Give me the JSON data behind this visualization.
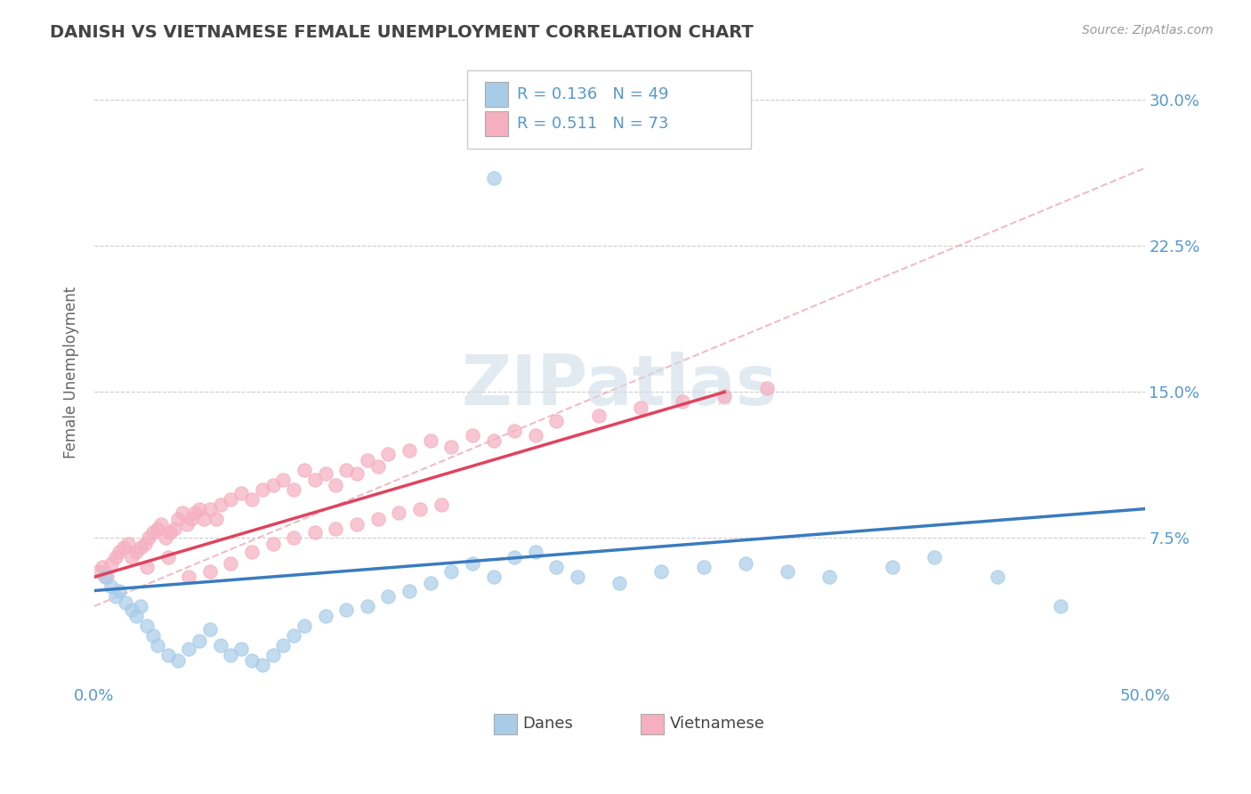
{
  "title": "DANISH VS VIETNAMESE FEMALE UNEMPLOYMENT CORRELATION CHART",
  "source": "Source: ZipAtlas.com",
  "ylabel": "Female Unemployment",
  "xlim": [
    0.0,
    0.5
  ],
  "ylim": [
    0.0,
    0.32
  ],
  "xticks": [
    0.0,
    0.1,
    0.2,
    0.3,
    0.4,
    0.5
  ],
  "xticklabels": [
    "0.0%",
    "",
    "",
    "",
    "",
    "50.0%"
  ],
  "yticks": [
    0.075,
    0.15,
    0.225,
    0.3
  ],
  "yticklabels": [
    "7.5%",
    "15.0%",
    "22.5%",
    "30.0%"
  ],
  "background_color": "#ffffff",
  "grid_color": "#cccccc",
  "danes_color": "#a8cce8",
  "vietnamese_color": "#f5afc0",
  "danes_line_color": "#3a7bbf",
  "vietnamese_line_color": "#e0435e",
  "dashed_line_color": "#e8a0b0",
  "title_color": "#444444",
  "axis_color": "#5599cc",
  "watermark_color": "#d0dce8",
  "danes_r": 0.136,
  "danes_n": 49,
  "vietnamese_r": 0.511,
  "vietnamese_n": 73,
  "danes_trend_x": [
    0.0,
    0.5
  ],
  "danes_trend_y": [
    0.048,
    0.09
  ],
  "vietnamese_trend_x": [
    0.0,
    0.3
  ],
  "vietnamese_trend_y": [
    0.055,
    0.15
  ],
  "dashed_trend_x": [
    0.0,
    0.5
  ],
  "dashed_trend_y": [
    0.04,
    0.265
  ],
  "danes_scatter_x": [
    0.005,
    0.008,
    0.01,
    0.012,
    0.015,
    0.018,
    0.02,
    0.022,
    0.025,
    0.028,
    0.03,
    0.035,
    0.04,
    0.045,
    0.05,
    0.055,
    0.06,
    0.065,
    0.07,
    0.075,
    0.08,
    0.085,
    0.09,
    0.095,
    0.1,
    0.11,
    0.12,
    0.13,
    0.14,
    0.15,
    0.16,
    0.17,
    0.18,
    0.19,
    0.2,
    0.21,
    0.22,
    0.23,
    0.25,
    0.27,
    0.29,
    0.31,
    0.33,
    0.35,
    0.38,
    0.4,
    0.43,
    0.46,
    0.19
  ],
  "danes_scatter_y": [
    0.055,
    0.05,
    0.045,
    0.048,
    0.042,
    0.038,
    0.035,
    0.04,
    0.03,
    0.025,
    0.02,
    0.015,
    0.012,
    0.018,
    0.022,
    0.028,
    0.02,
    0.015,
    0.018,
    0.012,
    0.01,
    0.015,
    0.02,
    0.025,
    0.03,
    0.035,
    0.038,
    0.04,
    0.045,
    0.048,
    0.052,
    0.058,
    0.062,
    0.055,
    0.065,
    0.068,
    0.06,
    0.055,
    0.052,
    0.058,
    0.06,
    0.062,
    0.058,
    0.055,
    0.06,
    0.065,
    0.055,
    0.04,
    0.26
  ],
  "vietnamese_scatter_x": [
    0.002,
    0.004,
    0.006,
    0.008,
    0.01,
    0.012,
    0.014,
    0.016,
    0.018,
    0.02,
    0.022,
    0.024,
    0.026,
    0.028,
    0.03,
    0.032,
    0.034,
    0.036,
    0.038,
    0.04,
    0.042,
    0.044,
    0.046,
    0.048,
    0.05,
    0.052,
    0.055,
    0.058,
    0.06,
    0.065,
    0.07,
    0.075,
    0.08,
    0.085,
    0.09,
    0.095,
    0.1,
    0.105,
    0.11,
    0.115,
    0.12,
    0.125,
    0.13,
    0.135,
    0.14,
    0.15,
    0.16,
    0.17,
    0.18,
    0.19,
    0.2,
    0.21,
    0.22,
    0.24,
    0.26,
    0.28,
    0.3,
    0.32,
    0.025,
    0.035,
    0.045,
    0.055,
    0.065,
    0.075,
    0.085,
    0.095,
    0.105,
    0.115,
    0.125,
    0.135,
    0.145,
    0.155,
    0.165
  ],
  "vietnamese_scatter_y": [
    0.058,
    0.06,
    0.055,
    0.062,
    0.065,
    0.068,
    0.07,
    0.072,
    0.065,
    0.068,
    0.07,
    0.072,
    0.075,
    0.078,
    0.08,
    0.082,
    0.075,
    0.078,
    0.08,
    0.085,
    0.088,
    0.082,
    0.085,
    0.088,
    0.09,
    0.085,
    0.09,
    0.085,
    0.092,
    0.095,
    0.098,
    0.095,
    0.1,
    0.102,
    0.105,
    0.1,
    0.11,
    0.105,
    0.108,
    0.102,
    0.11,
    0.108,
    0.115,
    0.112,
    0.118,
    0.12,
    0.125,
    0.122,
    0.128,
    0.125,
    0.13,
    0.128,
    0.135,
    0.138,
    0.142,
    0.145,
    0.148,
    0.152,
    0.06,
    0.065,
    0.055,
    0.058,
    0.062,
    0.068,
    0.072,
    0.075,
    0.078,
    0.08,
    0.082,
    0.085,
    0.088,
    0.09,
    0.092
  ]
}
